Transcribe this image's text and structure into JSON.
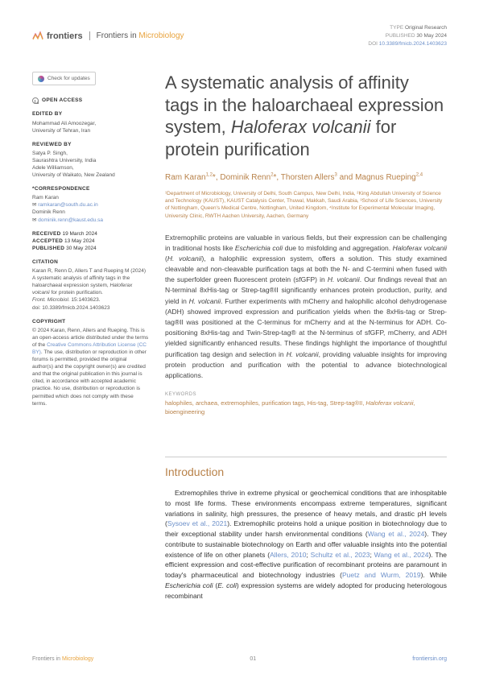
{
  "header": {
    "logo_text": "frontiers",
    "journal_prefix": "Frontiers in ",
    "journal_highlight": "Microbiology",
    "meta": {
      "type_label": "TYPE",
      "type": "Original Research",
      "published_label": "PUBLISHED",
      "published": "30 May 2024",
      "doi_label": "DOI",
      "doi": "10.3389/fmicb.2024.1403623"
    }
  },
  "sidebar": {
    "check_updates": "Check for updates",
    "open_access": "OPEN ACCESS",
    "edited_by_label": "EDITED BY",
    "edited_by_name": "Mohammad Ali Amoozegar,",
    "edited_by_affil": "University of Tehran, Iran",
    "reviewed_by_label": "REVIEWED BY",
    "reviewer1_name": "Satya P. Singh,",
    "reviewer1_affil": "Saurashtra University, India",
    "reviewer2_name": "Adele Williamson,",
    "reviewer2_affil": "University of Waikato, New Zealand",
    "correspondence_label": "*CORRESPONDENCE",
    "corr1_name": "Ram Karan",
    "corr1_email": "ramkaran@south.du.ac.in",
    "corr2_name": "Dominik Renn",
    "corr2_email": "dominik.renn@kaust.edu.sa",
    "received_label": "RECEIVED",
    "received": "19 March 2024",
    "accepted_label": "ACCEPTED",
    "accepted": "13 May 2024",
    "published_label": "PUBLISHED",
    "published": "30 May 2024",
    "citation_label": "CITATION",
    "citation_text": "Karan R, Renn D, Allers T and Rueping M (2024) A systematic analysis of affinity tags in the haloarchaeal expression system, ",
    "citation_italic": "Haloferax volcanii",
    "citation_text2": " for protein purification.",
    "citation_journal": "Front. Microbiol.",
    "citation_vol": " 15:1403623.",
    "citation_doi": "doi: 10.3389/fmicb.2024.1403623",
    "copyright_label": "COPYRIGHT",
    "copyright_text1": "© 2024 Karan, Renn, Allers and Rueping. This is an open-access article distributed under the terms of the ",
    "copyright_link": "Creative Commons Attribution License (CC BY)",
    "copyright_text2": ". The use, distribution or reproduction in other forums is permitted, provided the original author(s) and the copyright owner(s) are credited and that the original publication in this journal is cited, in accordance with accepted academic practice. No use, distribution or reproduction is permitted which does not comply with these terms."
  },
  "article": {
    "title_pre": "A systematic analysis of affinity tags in the haloarchaeal expression system, ",
    "title_italic": "Haloferax volcanii",
    "title_post": " for protein purification",
    "authors_html": "Ram Karan<sup>1,2</sup>*, Dominik Renn<sup>2</sup>*, Thorsten Allers<sup>3</sup> and Magnus Rueping<sup>2,4</sup>",
    "affiliations": "¹Department of Microbiology, University of Delhi, South Campus, New Delhi, India, ²King Abdullah University of Science and Technology (KAUST), KAUST Catalysis Center, Thuwal, Makkah, Saudi Arabia, ³School of Life Sciences, University of Nottingham, Queen's Medical Centre, Nottingham, United Kingdom, ⁴Institute for Experimental Molecular Imaging, University Clinic, RWTH Aachen University, Aachen, Germany",
    "abstract": "Extremophilic proteins are valuable in various fields, but their expression can be challenging in traditional hosts like Escherichia coli due to misfolding and aggregation. Haloferax volcanii (H. volcanii), a halophilic expression system, offers a solution. This study examined cleavable and non-cleavable purification tags at both the N- and C-termini when fused with the superfolder green fluorescent protein (sfGFP) in H. volcanii. Our findings reveal that an N-terminal 8xHis-tag or Strep-tag®II significantly enhances protein production, purity, and yield in H. volcanii. Further experiments with mCherry and halophilic alcohol dehydrogenase (ADH) showed improved expression and purification yields when the 8xHis-tag or Strep-tag®II was positioned at the C-terminus for mCherry and at the N-terminus for ADH. Co-positioning 8xHis-tag and Twin-Strep-tag® at the N-terminus of sfGFP, mCherry, and ADH yielded significantly enhanced results. These findings highlight the importance of thoughtful purification tag design and selection in H. volcanii, providing valuable insights for improving protein production and purification with the potential to advance biotechnological applications.",
    "keywords_label": "KEYWORDS",
    "keywords": "halophiles, archaea, extremophiles, purification tags, His-tag, Strep-tag®II, Haloferax volcanii, bioengineering",
    "section_title": "Introduction",
    "body": "Extremophiles thrive in extreme physical or geochemical conditions that are inhospitable to most life forms. These environments encompass extreme temperatures, significant variations in salinity, high pressures, the presence of heavy metals, and drastic pH levels (Sysoev et al., 2021). Extremophilic proteins hold a unique position in biotechnology due to their exceptional stability under harsh environmental conditions (Wang et al., 2024). They contribute to sustainable biotechnology on Earth and offer valuable insights into the potential existence of life on other planets (Allers, 2010; Schultz et al., 2023; Wang et al., 2024). The efficient expression and cost-effective purification of recombinant proteins are paramount in today's pharmaceutical and biotechnology industries (Puetz and Wurm, 2019). While Escherichia coli (E. coli) expression systems are widely adopted for producing heterologous recombinant"
  },
  "footer": {
    "left_prefix": "Frontiers in ",
    "left_highlight": "Microbiology",
    "page": "01",
    "right": "frontiersin.org"
  },
  "colors": {
    "accent": "#b8824a",
    "link": "#6b8fc9",
    "highlight": "#e8a33d",
    "text": "#444"
  }
}
